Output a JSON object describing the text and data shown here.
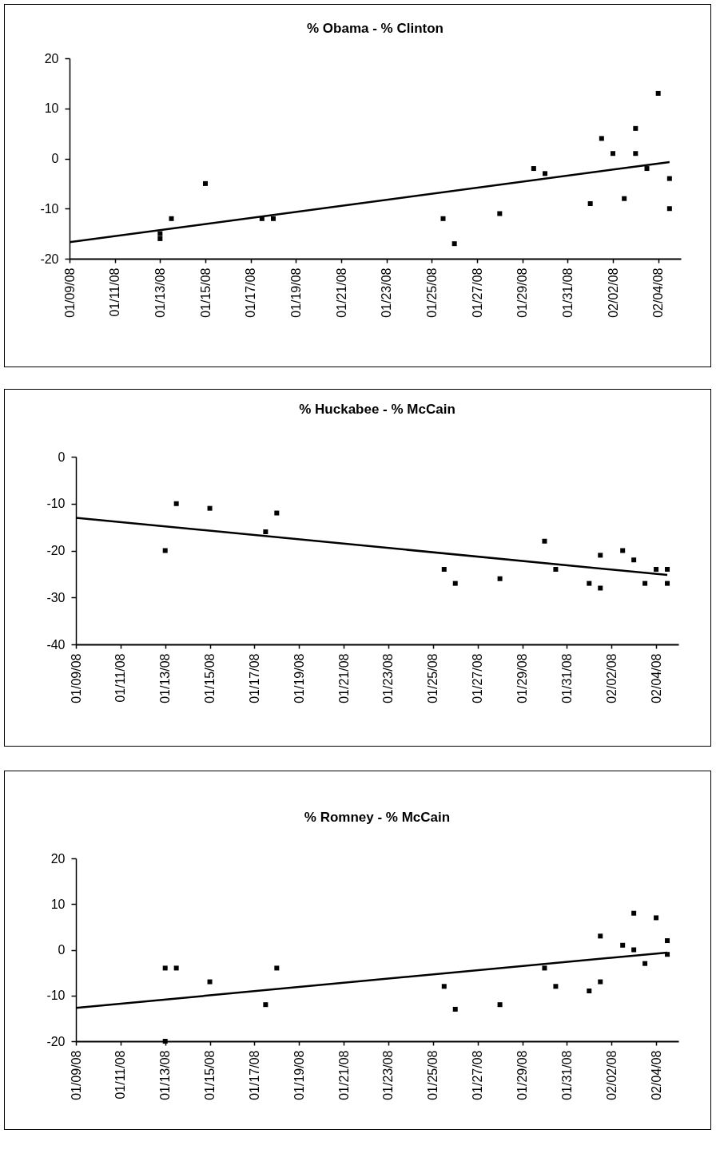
{
  "chart_data": [
    {
      "type": "scatter",
      "title": "% Obama - % Clinton",
      "xlim": [
        "--01-09",
        "--02-05"
      ],
      "xticks": [
        {
          "value": "--01-09",
          "label": "01/09/08"
        },
        {
          "value": "--01-11",
          "label": "01/11/08"
        },
        {
          "value": "--01-13",
          "label": "01/13/08"
        },
        {
          "value": "--01-15",
          "label": "01/15/08"
        },
        {
          "value": "--01-17",
          "label": "01/17/08"
        },
        {
          "value": "--01-19",
          "label": "01/19/08"
        },
        {
          "value": "--01-21",
          "label": "01/21/08"
        },
        {
          "value": "--01-23",
          "label": "01/23/08"
        },
        {
          "value": "--01-25",
          "label": "01/25/08"
        },
        {
          "value": "--01-27",
          "label": "01/27/08"
        },
        {
          "value": "--01-29",
          "label": "01/29/08"
        },
        {
          "value": "--01-31",
          "label": "01/31/08"
        },
        {
          "value": "--02-02",
          "label": "02/02/08"
        },
        {
          "value": "--02-04",
          "label": "02/04/08"
        }
      ],
      "ylim": [
        -20,
        20
      ],
      "yticks": [
        -20,
        -10,
        0,
        10,
        20
      ],
      "series": [
        {
          "type": "scatter",
          "marker": "square",
          "color": "#000000",
          "x": [
            "--01-13",
            "--01-13",
            "--01-13T12:00",
            "--01-15",
            "--01-17T12:00",
            "--01-18",
            "--01-25T12:00",
            "--01-26",
            "--01-28",
            "--01-29T12:00",
            "--01-30",
            "--02-01",
            "--02-01T12:00",
            "--02-02",
            "--02-02T12:00",
            "--02-03",
            "--02-03",
            "--02-03T12:00",
            "--02-04",
            "--02-04T12:00",
            "--02-04T12:00"
          ],
          "values": [
            -15,
            -16,
            -12,
            -5,
            -12,
            -12,
            -12,
            -17,
            -11,
            -2,
            -3,
            -9,
            4,
            1,
            -8,
            6,
            1,
            -2,
            13,
            -4,
            -10
          ]
        },
        {
          "type": "line",
          "color": "#000000",
          "x": [
            "--01-09",
            "--02-04T12:00"
          ],
          "values": [
            -16.7,
            -0.7
          ]
        }
      ]
    },
    {
      "type": "scatter",
      "title": "% Huckabee - % McCain",
      "xlim": [
        "--01-09",
        "--02-05"
      ],
      "xticks": [
        {
          "value": "--01-09",
          "label": "01/09/08"
        },
        {
          "value": "--01-11",
          "label": "01/11/08"
        },
        {
          "value": "--01-13",
          "label": "01/13/08"
        },
        {
          "value": "--01-15",
          "label": "01/15/08"
        },
        {
          "value": "--01-17",
          "label": "01/17/08"
        },
        {
          "value": "--01-19",
          "label": "01/19/08"
        },
        {
          "value": "--01-21",
          "label": "01/21/08"
        },
        {
          "value": "--01-23",
          "label": "01/23/08"
        },
        {
          "value": "--01-25",
          "label": "01/25/08"
        },
        {
          "value": "--01-27",
          "label": "01/27/08"
        },
        {
          "value": "--01-29",
          "label": "01/29/08"
        },
        {
          "value": "--01-31",
          "label": "01/31/08"
        },
        {
          "value": "--02-02",
          "label": "02/02/08"
        },
        {
          "value": "--02-04",
          "label": "02/04/08"
        }
      ],
      "ylim": [
        -40,
        0
      ],
      "yticks": [
        -40,
        -30,
        -20,
        -10,
        0
      ],
      "series": [
        {
          "type": "scatter",
          "marker": "square",
          "color": "#000000",
          "x": [
            "--01-13",
            "--01-13T12:00",
            "--01-15",
            "--01-17T12:00",
            "--01-18",
            "--01-25T12:00",
            "--01-26",
            "--01-28",
            "--01-30",
            "--01-30T12:00",
            "--02-01",
            "--02-01T12:00",
            "--02-01T12:00",
            "--02-02T12:00",
            "--02-03",
            "--02-03T12:00",
            "--02-04",
            "--02-04T12:00",
            "--02-04T12:00"
          ],
          "values": [
            -20,
            -10,
            -11,
            -16,
            -12,
            -24,
            -27,
            -26,
            -18,
            -24,
            -27,
            -21,
            -28,
            -20,
            -22,
            -27,
            -24,
            -24,
            -27
          ]
        },
        {
          "type": "line",
          "color": "#000000",
          "x": [
            "--01-09",
            "--02-04T12:00"
          ],
          "values": [
            -13,
            -25.2
          ]
        }
      ]
    },
    {
      "type": "scatter",
      "title": "% Romney - % McCain",
      "xlim": [
        "--01-09",
        "--02-05"
      ],
      "xticks": [
        {
          "value": "--01-09",
          "label": "01/09/08"
        },
        {
          "value": "--01-11",
          "label": "01/11/08"
        },
        {
          "value": "--01-13",
          "label": "01/13/08"
        },
        {
          "value": "--01-15",
          "label": "01/15/08"
        },
        {
          "value": "--01-17",
          "label": "01/17/08"
        },
        {
          "value": "--01-19",
          "label": "01/19/08"
        },
        {
          "value": "--01-21",
          "label": "01/21/08"
        },
        {
          "value": "--01-23",
          "label": "01/23/08"
        },
        {
          "value": "--01-25",
          "label": "01/25/08"
        },
        {
          "value": "--01-27",
          "label": "01/27/08"
        },
        {
          "value": "--01-29",
          "label": "01/29/08"
        },
        {
          "value": "--01-31",
          "label": "01/31/08"
        },
        {
          "value": "--02-02",
          "label": "02/02/08"
        },
        {
          "value": "--02-04",
          "label": "02/04/08"
        }
      ],
      "ylim": [
        -20,
        20
      ],
      "yticks": [
        -20,
        -10,
        0,
        10,
        20
      ],
      "series": [
        {
          "type": "scatter",
          "marker": "square",
          "color": "#000000",
          "x": [
            "--01-13",
            "--01-13T12:00",
            "--01-13",
            "--01-15",
            "--01-17T12:00",
            "--01-18",
            "--01-25T12:00",
            "--01-26",
            "--01-28",
            "--01-30",
            "--01-30T12:00",
            "--02-01",
            "--02-01T12:00",
            "--02-01T12:00",
            "--02-02T12:00",
            "--02-03",
            "--02-03",
            "--02-03T12:00",
            "--02-04",
            "--02-04T12:00",
            "--02-04T12:00"
          ],
          "values": [
            -4,
            -4,
            -20,
            -7,
            -12,
            -4,
            -8,
            -13,
            -12,
            -4,
            -8,
            -9,
            -7,
            3,
            1,
            8,
            0,
            -3,
            7,
            2,
            -1
          ]
        },
        {
          "type": "line",
          "color": "#000000",
          "x": [
            "--01-09",
            "--02-04T12:00"
          ],
          "values": [
            -12.7,
            -0.6
          ]
        }
      ]
    }
  ]
}
